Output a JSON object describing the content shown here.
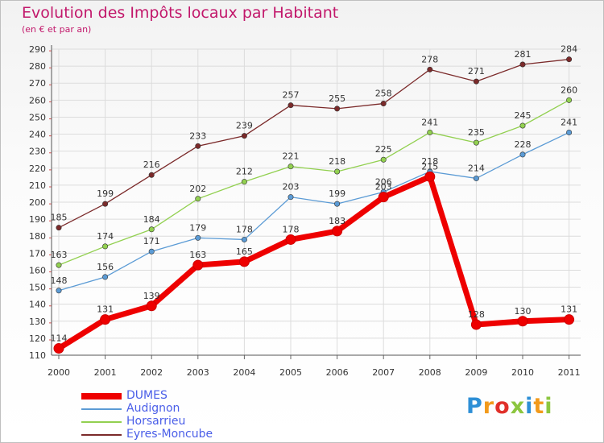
{
  "title": "Evolution des Impôts locaux par Habitant",
  "subtitle": "(en € et par an)",
  "brand": "Proxiti",
  "chart_data": {
    "type": "line",
    "title": "Evolution des Impôts locaux par Habitant",
    "subtitle": "(en € et par an)",
    "categories": [
      "2000",
      "2001",
      "2002",
      "2003",
      "2004",
      "2005",
      "2006",
      "2007",
      "2008",
      "2009",
      "2010",
      "2011"
    ],
    "ylim": [
      110,
      290
    ],
    "yticks": [
      110,
      120,
      130,
      140,
      150,
      160,
      170,
      180,
      190,
      200,
      210,
      220,
      230,
      240,
      250,
      260,
      270,
      280,
      290
    ],
    "grid": true,
    "legend_position": "bottom-left",
    "series": [
      {
        "name": "DUMES",
        "color": "#ee0000",
        "values": [
          114,
          131,
          139,
          163,
          165,
          178,
          183,
          203,
          215,
          128,
          130,
          131
        ]
      },
      {
        "name": "Audignon",
        "color": "#5b9bd5",
        "values": [
          148,
          156,
          171,
          179,
          178,
          203,
          199,
          206,
          218,
          214,
          228,
          241
        ]
      },
      {
        "name": "Horsarrieu",
        "color": "#92d050",
        "values": [
          163,
          174,
          184,
          202,
          212,
          221,
          218,
          225,
          241,
          235,
          245,
          260
        ]
      },
      {
        "name": "Eyres-Moncube",
        "color": "#7b2a2a",
        "values": [
          185,
          199,
          216,
          233,
          239,
          257,
          255,
          258,
          278,
          271,
          281,
          284
        ]
      }
    ]
  }
}
